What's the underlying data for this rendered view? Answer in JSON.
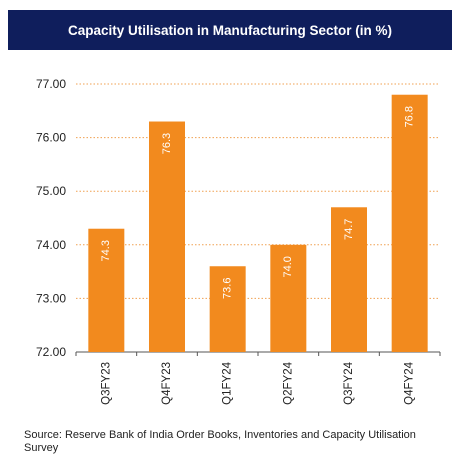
{
  "chart_data": {
    "type": "bar",
    "title": "Capacity Utilisation in Manufacturing Sector (in %)",
    "categories": [
      "Q3FY23",
      "Q4FY23",
      "Q1FY24",
      "Q2FY24",
      "Q3FY24",
      "Q4FY24"
    ],
    "values": [
      74.3,
      76.3,
      73.6,
      74.0,
      74.7,
      76.8
    ],
    "data_labels": [
      "74.3",
      "76.3",
      "73.6",
      "74.0",
      "74.7",
      "76.8"
    ],
    "ylim": [
      72,
      77
    ],
    "yticks": [
      72,
      73,
      74,
      75,
      76,
      77
    ],
    "ytick_labels": [
      "72.00",
      "73.00",
      "74.00",
      "75.00",
      "76.00",
      "77.00"
    ],
    "xlabel": "",
    "ylabel": "",
    "grid": true,
    "bar_color": "#f28a1e",
    "grid_color": "#f0a050",
    "title_background": "#0f1e5c"
  },
  "source_text": "Source: Reserve Bank of India Order Books, Inventories and Capacity Utilisation Survey"
}
